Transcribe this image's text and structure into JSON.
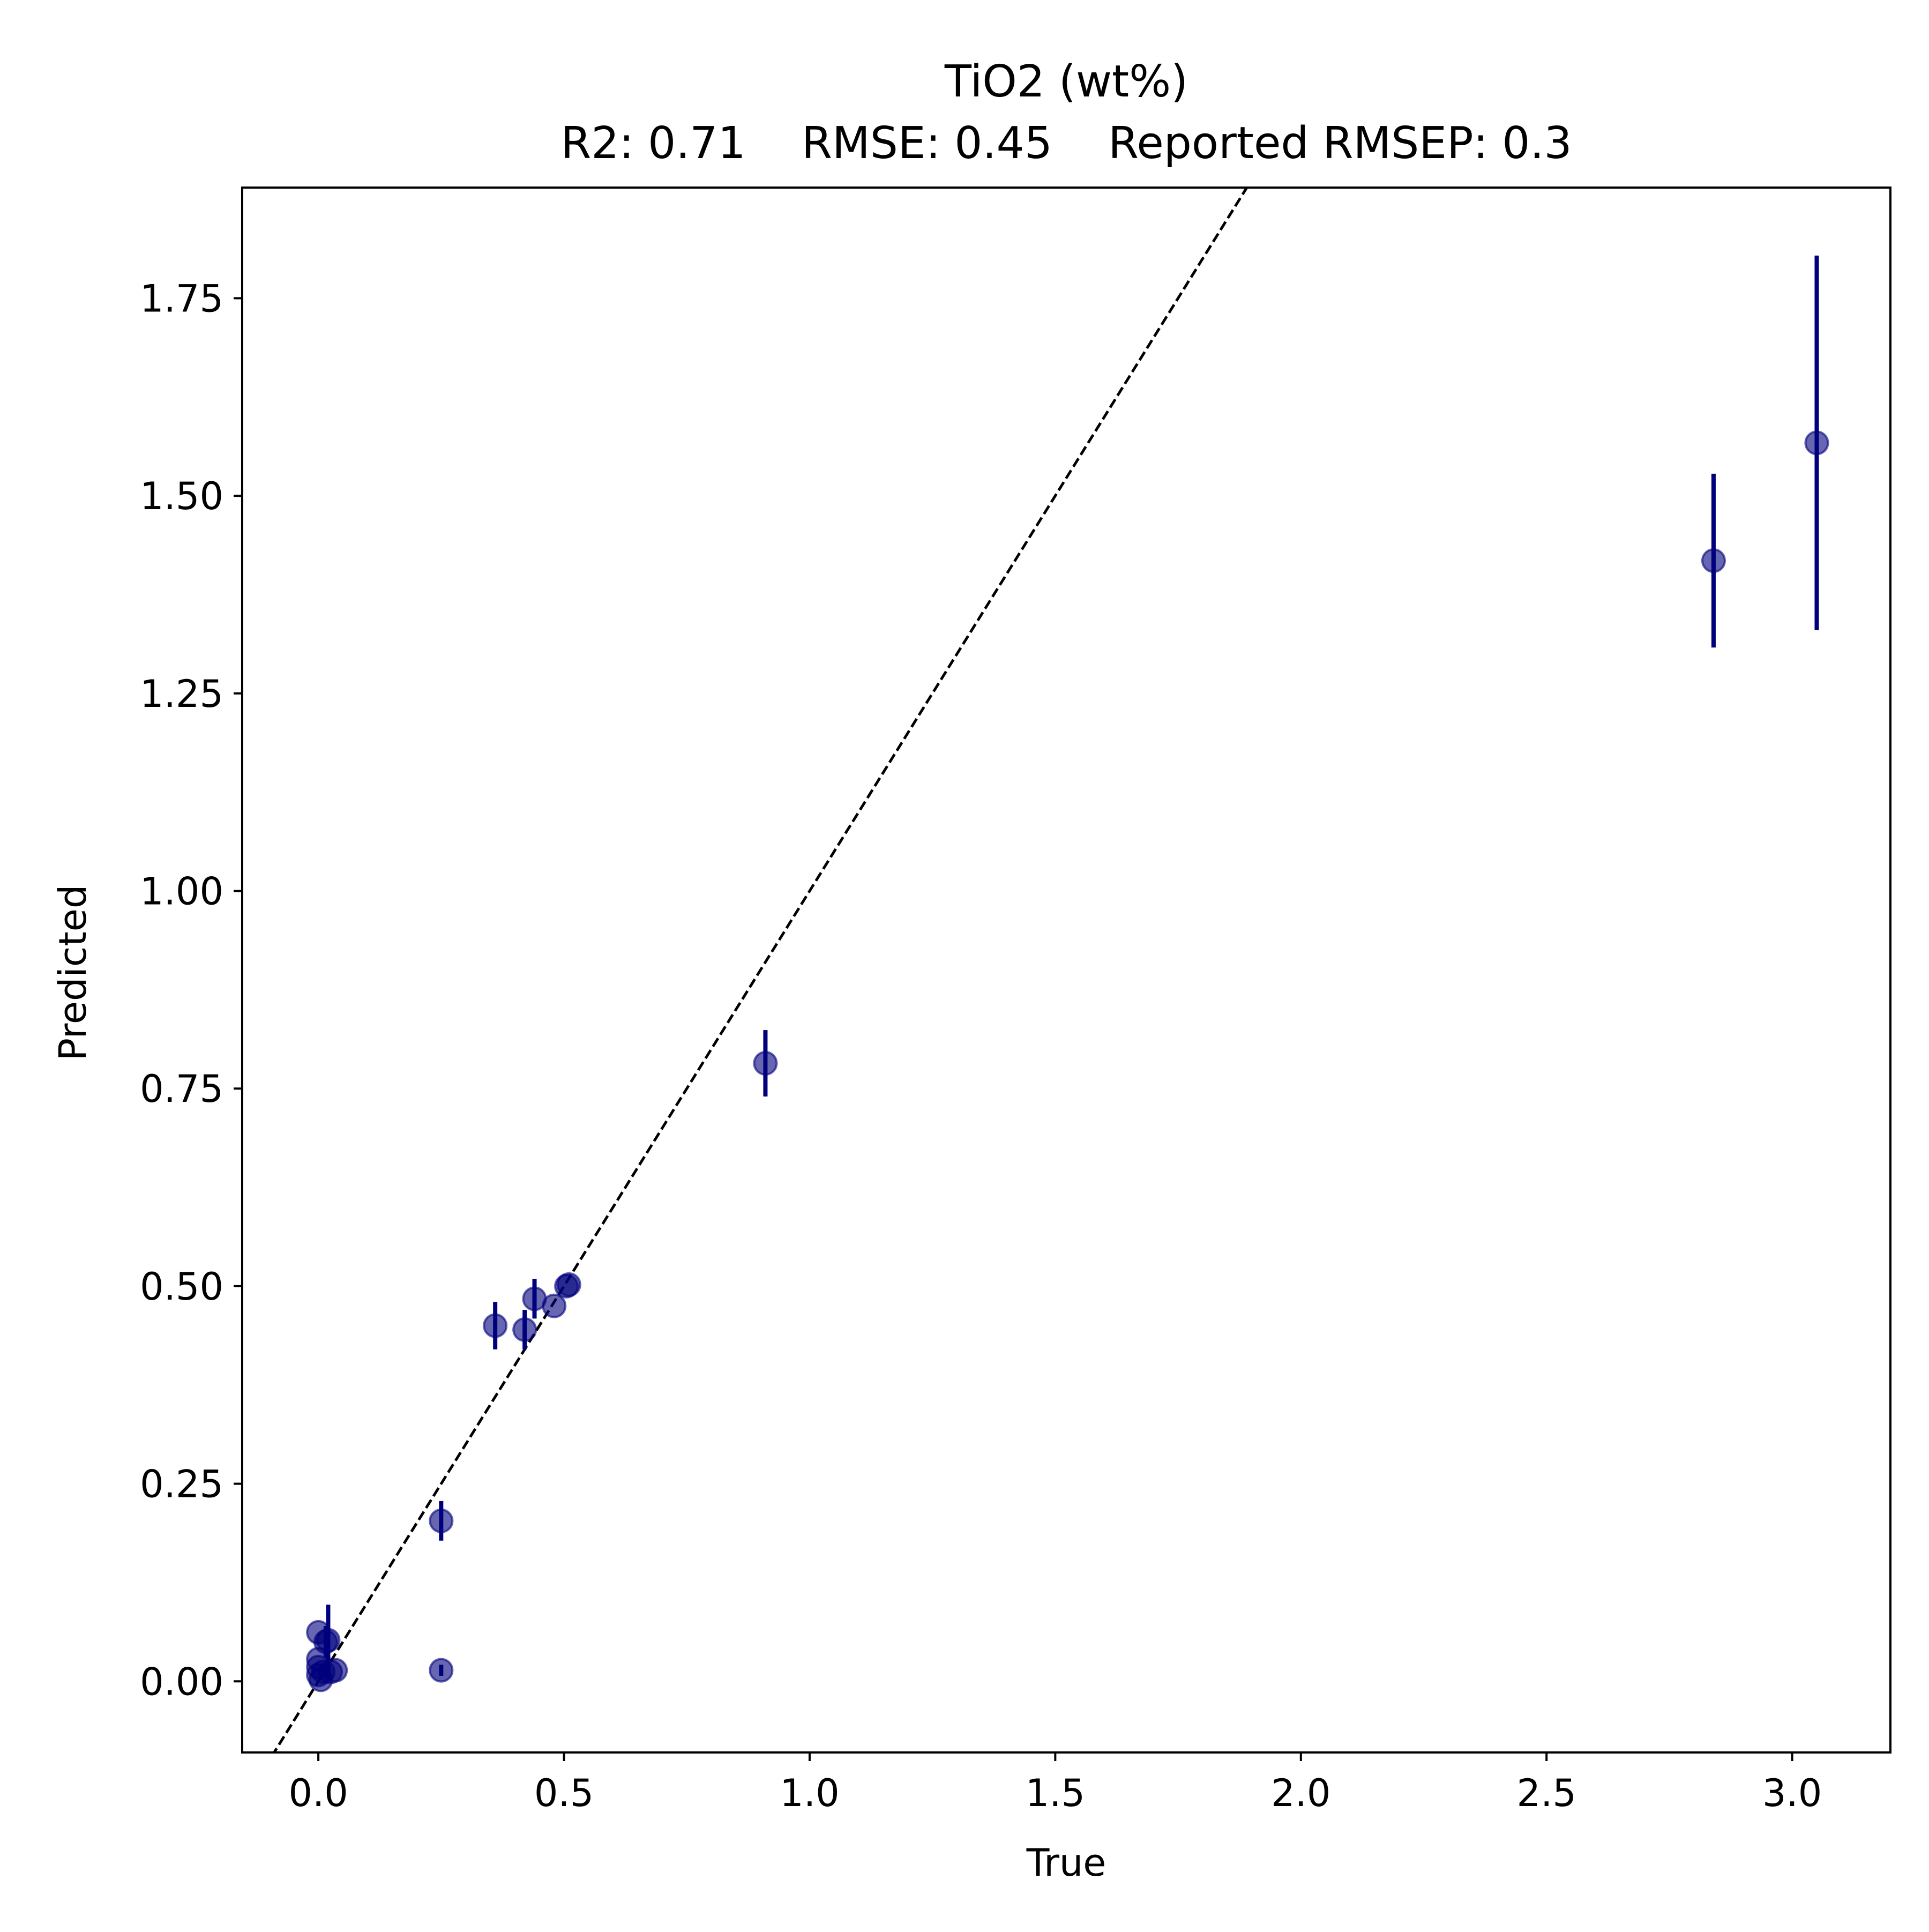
{
  "chart_data": {
    "type": "scatter",
    "title": "TiO2 (wt%)",
    "subtitle": "R2: 0.71    RMSE: 0.45    Reported RMSEP: 0.3",
    "xlabel": "True",
    "ylabel": "Predicted",
    "xlim": [
      -0.155,
      3.2
    ],
    "ylim": [
      -0.09,
      1.89
    ],
    "xticks": [
      0.0,
      0.5,
      1.0,
      1.5,
      2.0,
      2.5,
      3.0
    ],
    "xtick_labels": [
      "0.0",
      "0.5",
      "1.0",
      "1.5",
      "2.0",
      "2.5",
      "3.0"
    ],
    "yticks": [
      0.0,
      0.25,
      0.5,
      0.75,
      1.0,
      1.25,
      1.5,
      1.75
    ],
    "ytick_labels": [
      "0.00",
      "0.25",
      "0.50",
      "0.75",
      "1.00",
      "1.25",
      "1.50",
      "1.75"
    ],
    "grid": false,
    "reference_line": "y = x (dashed)",
    "colors": {
      "marker": "#00007d",
      "errorbar": "#00007d",
      "reference_line": "#000000"
    },
    "points": [
      {
        "x": 0.0,
        "y": 0.062,
        "err": 0.0
      },
      {
        "x": 0.0,
        "y": 0.028,
        "err": 0.0
      },
      {
        "x": 0.0,
        "y": 0.018,
        "err": 0.0
      },
      {
        "x": 0.0,
        "y": 0.008,
        "err": 0.0
      },
      {
        "x": 0.005,
        "y": 0.002,
        "err": 0.0
      },
      {
        "x": 0.01,
        "y": 0.012,
        "err": 0.0
      },
      {
        "x": 0.015,
        "y": 0.05,
        "err": 0.02
      },
      {
        "x": 0.02,
        "y": 0.052,
        "err": 0.045
      },
      {
        "x": 0.025,
        "y": 0.012,
        "err": 0.0
      },
      {
        "x": 0.035,
        "y": 0.014,
        "err": 0.0
      },
      {
        "x": 0.25,
        "y": 0.203,
        "err": 0.025
      },
      {
        "x": 0.25,
        "y": 0.014,
        "err": 0.007
      },
      {
        "x": 0.36,
        "y": 0.45,
        "err": 0.03
      },
      {
        "x": 0.42,
        "y": 0.445,
        "err": 0.025
      },
      {
        "x": 0.44,
        "y": 0.484,
        "err": 0.025
      },
      {
        "x": 0.48,
        "y": 0.475,
        "err": 0.0
      },
      {
        "x": 0.505,
        "y": 0.5,
        "err": 0.0
      },
      {
        "x": 0.51,
        "y": 0.502,
        "err": 0.0
      },
      {
        "x": 0.91,
        "y": 0.782,
        "err": 0.042
      },
      {
        "x": 2.84,
        "y": 1.418,
        "err": 0.11
      },
      {
        "x": 3.05,
        "y": 1.567,
        "err": 0.237
      }
    ]
  }
}
